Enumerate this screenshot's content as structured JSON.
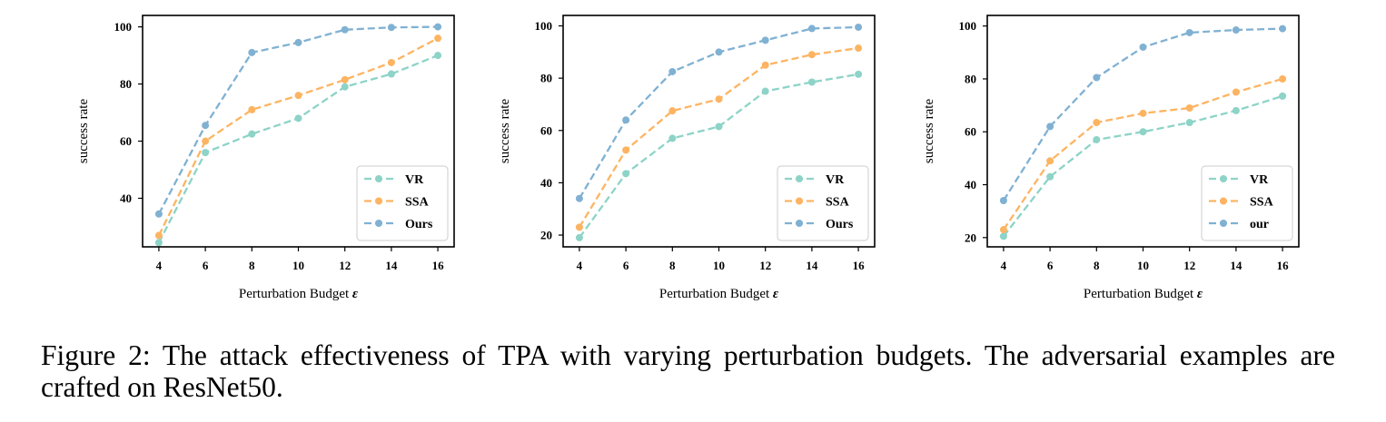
{
  "chart_data": [
    {
      "type": "line",
      "x": [
        4,
        6,
        8,
        10,
        12,
        14,
        16
      ],
      "xlabel": "Perturbation Budget",
      "xlabel_symbol": "ε",
      "ylabel": "success rate",
      "xlim": [
        3.3,
        16.7
      ],
      "ylim": [
        23,
        104
      ],
      "yticks": [
        40,
        60,
        80,
        100
      ],
      "legend_position": "lower-right",
      "series": [
        {
          "name": "VR",
          "color": "#8dd3c7",
          "values": [
            24.5,
            56,
            62.5,
            68,
            79,
            83.5,
            90
          ]
        },
        {
          "name": "SSA",
          "color": "#fdb462",
          "values": [
            27,
            60,
            71,
            76,
            81.5,
            87.5,
            96
          ]
        },
        {
          "name": "Ours",
          "color": "#80b1d3",
          "values": [
            34.5,
            65.5,
            91,
            94.5,
            99,
            99.8,
            100
          ]
        }
      ]
    },
    {
      "type": "line",
      "x": [
        4,
        6,
        8,
        10,
        12,
        14,
        16
      ],
      "xlabel": "Perturbation Budget",
      "xlabel_symbol": "ε",
      "ylabel": "success rate",
      "xlim": [
        3.3,
        16.7
      ],
      "ylim": [
        15.5,
        104
      ],
      "yticks": [
        20,
        40,
        60,
        80,
        100
      ],
      "legend_position": "lower-right",
      "series": [
        {
          "name": "VR",
          "color": "#8dd3c7",
          "values": [
            19,
            43.5,
            57,
            61.5,
            75,
            78.5,
            81.5
          ]
        },
        {
          "name": "SSA",
          "color": "#fdb462",
          "values": [
            23,
            52.5,
            67.5,
            72,
            85,
            89,
            91.5
          ]
        },
        {
          "name": "Ours",
          "color": "#80b1d3",
          "values": [
            34,
            64,
            82.5,
            90,
            94.5,
            99,
            99.5
          ]
        }
      ]
    },
    {
      "type": "line",
      "x": [
        4,
        6,
        8,
        10,
        12,
        14,
        16
      ],
      "xlabel": "Perturbation Budget",
      "xlabel_symbol": "ε",
      "ylabel": "success rate",
      "xlim": [
        3.3,
        16.7
      ],
      "ylim": [
        16.5,
        104
      ],
      "yticks": [
        20,
        40,
        60,
        80,
        100
      ],
      "legend_position": "lower-right",
      "series": [
        {
          "name": "VR",
          "color": "#8dd3c7",
          "values": [
            20.5,
            43,
            57,
            60,
            63.5,
            68,
            73.5
          ]
        },
        {
          "name": "SSA",
          "color": "#fdb462",
          "values": [
            23,
            49,
            63.5,
            67,
            69,
            75,
            80
          ]
        },
        {
          "name": "our",
          "color": "#80b1d3",
          "values": [
            34,
            62,
            80.5,
            92,
            97.5,
            98.5,
            99
          ]
        }
      ]
    }
  ],
  "caption": "Figure 2: The attack effectiveness of TPA with varying perturbation budgets. The adversarial examples are crafted on ResNet50."
}
